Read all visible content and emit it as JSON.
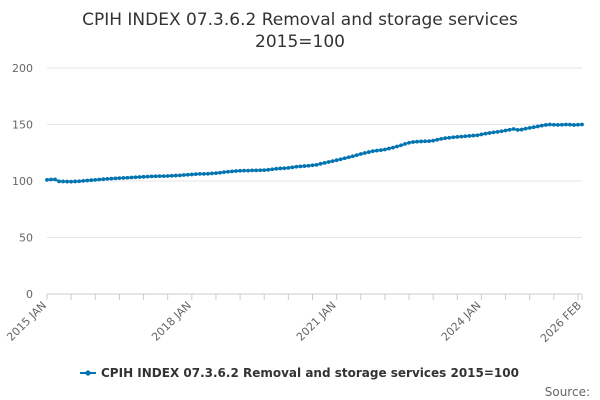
{
  "chart_data": {
    "type": "line",
    "title_line1": "CPIH INDEX 07.3.6.2 Removal and storage services",
    "title_line2": "2015=100",
    "ylim": [
      0,
      200
    ],
    "yticks": [
      "0",
      "50",
      "100",
      "150",
      "200"
    ],
    "xticks": [
      "2015 JAN",
      "2018 JAN",
      "2021 JAN",
      "2024 JAN",
      "2026 FEB"
    ],
    "series": [
      {
        "name": "CPIH INDEX 07.3.6.2 Removal and storage services 2015=100",
        "color": "#0075b0",
        "values": [
          101.0,
          101.3,
          101.4,
          99.7,
          99.6,
          99.5,
          99.4,
          99.6,
          99.8,
          100.1,
          100.4,
          100.7,
          101.0,
          101.3,
          101.6,
          101.9,
          102.1,
          102.3,
          102.5,
          102.7,
          102.9,
          103.1,
          103.3,
          103.5,
          103.7,
          103.9,
          104.1,
          104.2,
          104.3,
          104.3,
          104.4,
          104.6,
          104.8,
          105.0,
          105.3,
          105.5,
          105.8,
          106.1,
          106.3,
          106.3,
          106.4,
          106.7,
          107.0,
          107.3,
          107.8,
          108.2,
          108.5,
          108.8,
          109.1,
          109.2,
          109.2,
          109.4,
          109.4,
          109.5,
          109.6,
          109.9,
          110.4,
          110.8,
          111.1,
          111.3,
          111.6,
          112.1,
          112.6,
          112.9,
          113.2,
          113.5,
          113.9,
          114.3,
          115.2,
          116.0,
          116.8,
          117.6,
          118.4,
          119.2,
          120.1,
          121.0,
          121.9,
          122.9,
          123.9,
          124.8,
          125.6,
          126.4,
          126.9,
          127.3,
          127.9,
          128.7,
          129.5,
          130.5,
          131.6,
          132.8,
          133.8,
          134.5,
          134.8,
          135.0,
          135.2,
          135.3,
          135.7,
          136.5,
          137.3,
          137.9,
          138.3,
          138.7,
          139.0,
          139.3,
          139.6,
          139.9,
          140.2,
          140.5,
          141.2,
          141.9,
          142.5,
          143.0,
          143.5,
          144.0,
          144.7,
          145.3,
          146.0,
          145.2,
          145.5,
          146.3,
          147.0,
          147.6,
          148.3,
          149.0,
          149.6,
          150.0,
          149.8,
          149.7,
          149.8,
          150.0,
          149.9,
          149.6,
          149.8,
          150.0
        ]
      }
    ],
    "grid": true,
    "legend_position": "bottom-center",
    "source_label": "Source:"
  }
}
